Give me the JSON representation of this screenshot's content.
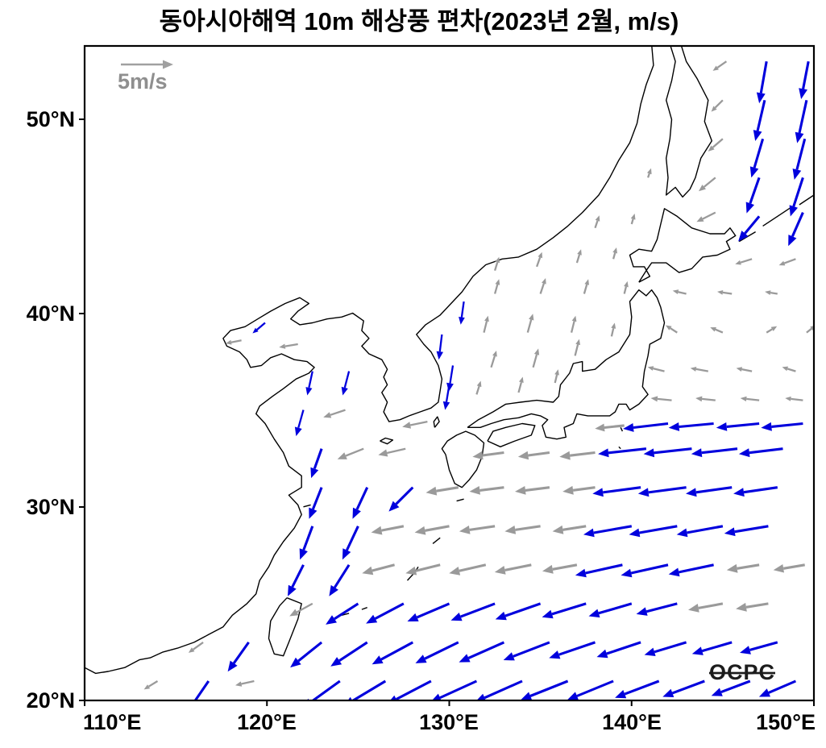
{
  "chart_data": {
    "type": "quiver-map",
    "title": "동아시아해역 10m 해상풍 편차(2023년 2월, m/s)",
    "watermark": "OCPC",
    "x_ticks": [
      110,
      120,
      130,
      140,
      150
    ],
    "y_ticks": [
      20,
      30,
      40,
      50
    ],
    "xlabel_ticks": [
      "110°E",
      "120°E",
      "130°E",
      "140°E",
      "150°E"
    ],
    "ylabel_ticks": [
      "20°N",
      "30°N",
      "40°N",
      "50°N"
    ],
    "x_range": [
      110,
      150
    ],
    "y_range": [
      20,
      53.8
    ],
    "units": "m/s",
    "reference_vector": {
      "label": "5m/s",
      "speed_ms": 5
    },
    "colors": {
      "significant": "#0000dd",
      "normal": "#9a9a9a",
      "coast": "#000000"
    },
    "legend_note": "blue = significant anomaly vectors, gray = other anomaly vectors",
    "vectors": [
      [
        114,
        21,
        -1.3,
        -0.8,
        "g"
      ],
      [
        116.8,
        21,
        -2.2,
        -3.2,
        "b"
      ],
      [
        119.3,
        21,
        -1.8,
        -0.4,
        "g"
      ],
      [
        124,
        21,
        -3.6,
        -2.6,
        "b"
      ],
      [
        126.5,
        21,
        -4,
        -2.4,
        "b"
      ],
      [
        129,
        21,
        -4.2,
        -2.2,
        "b"
      ],
      [
        131.5,
        21,
        -4.4,
        -2,
        "b"
      ],
      [
        134,
        21,
        -4.5,
        -2,
        "b"
      ],
      [
        136.5,
        21,
        -4.5,
        -1.8,
        "b"
      ],
      [
        139,
        21,
        -4.4,
        -1.8,
        "b"
      ],
      [
        141.5,
        21,
        -4.2,
        -1.6,
        "b"
      ],
      [
        144,
        21,
        -4,
        -1.5,
        "b"
      ],
      [
        146.5,
        21,
        -3.7,
        -1.4,
        "b"
      ],
      [
        149,
        21,
        -3.5,
        -1.5,
        "b"
      ],
      [
        116.5,
        23,
        -1.4,
        -1,
        "g"
      ],
      [
        119,
        23,
        -2,
        -2.8,
        "b"
      ],
      [
        123,
        23,
        -3,
        -2.4,
        "b"
      ],
      [
        125.5,
        23,
        -3.5,
        -2.3,
        "b"
      ],
      [
        128,
        23,
        -3.9,
        -2.1,
        "b"
      ],
      [
        130.5,
        23,
        -4.1,
        -2,
        "b"
      ],
      [
        133,
        23,
        -4.3,
        -1.9,
        "b"
      ],
      [
        135.5,
        23,
        -4.4,
        -1.7,
        "b"
      ],
      [
        138,
        23,
        -4.4,
        -1.5,
        "b"
      ],
      [
        140.5,
        23,
        -4.2,
        -1.4,
        "b"
      ],
      [
        143,
        23,
        -4,
        -1.2,
        "b"
      ],
      [
        145.5,
        23,
        -3.8,
        -1.1,
        "b"
      ],
      [
        148,
        23,
        -3.6,
        -1,
        "b"
      ],
      [
        122.5,
        25,
        -2.2,
        -1.2,
        "g"
      ],
      [
        125,
        25,
        -3.1,
        -2,
        "b"
      ],
      [
        127.5,
        25,
        -3.6,
        -1.9,
        "b"
      ],
      [
        130,
        25,
        -4,
        -1.7,
        "b"
      ],
      [
        132.5,
        25,
        -4.2,
        -1.6,
        "b"
      ],
      [
        135,
        25,
        -4.3,
        -1.5,
        "b"
      ],
      [
        137.5,
        25,
        -4.2,
        -1.3,
        "b"
      ],
      [
        140,
        25,
        -4.1,
        -1.2,
        "b"
      ],
      [
        142.5,
        25,
        -3.9,
        -1,
        "b"
      ],
      [
        145,
        25,
        -3.3,
        -0.6,
        "g"
      ],
      [
        147.5,
        25,
        -3.1,
        -0.5,
        "g"
      ],
      [
        122,
        27,
        -1.5,
        -3,
        "b"
      ],
      [
        124.5,
        27,
        -1.9,
        -3,
        "b"
      ],
      [
        127,
        27,
        -3.1,
        -0.8,
        "g"
      ],
      [
        129.5,
        27,
        -3.3,
        -0.8,
        "g"
      ],
      [
        132,
        27,
        -3.5,
        -0.8,
        "g"
      ],
      [
        134.5,
        27,
        -3.5,
        -0.7,
        "g"
      ],
      [
        137,
        27,
        -3.3,
        -0.6,
        "g"
      ],
      [
        139.5,
        27,
        -4.5,
        -1,
        "b"
      ],
      [
        142,
        27,
        -4.5,
        -1,
        "b"
      ],
      [
        144.5,
        27,
        -4.3,
        -0.9,
        "b"
      ],
      [
        147,
        27,
        -3.1,
        -0.5,
        "g"
      ],
      [
        149.5,
        27,
        -3,
        -0.5,
        "g"
      ],
      [
        122.5,
        29,
        -1.2,
        -3.2,
        "b"
      ],
      [
        125,
        29,
        -1.5,
        -3.2,
        "b"
      ],
      [
        127.5,
        29,
        -3.1,
        -0.6,
        "g"
      ],
      [
        130,
        29,
        -3.3,
        -0.6,
        "g"
      ],
      [
        132.5,
        29,
        -3.4,
        -0.5,
        "g"
      ],
      [
        135,
        29,
        -3.4,
        -0.5,
        "g"
      ],
      [
        137.5,
        29,
        -3.2,
        -0.5,
        "g"
      ],
      [
        140,
        29,
        -4.6,
        -0.8,
        "b"
      ],
      [
        142.5,
        29,
        -4.6,
        -0.8,
        "b"
      ],
      [
        145,
        29,
        -4.4,
        -0.8,
        "b"
      ],
      [
        147.5,
        29,
        -4.2,
        -0.7,
        "b"
      ],
      [
        123,
        31,
        -1.2,
        -3,
        "b"
      ],
      [
        125.5,
        31,
        -1.4,
        -3,
        "b"
      ],
      [
        128,
        31,
        -2.3,
        -2.3,
        "b"
      ],
      [
        130.5,
        31,
        -3.1,
        -0.5,
        "g"
      ],
      [
        133,
        31,
        -3.3,
        -0.4,
        "g"
      ],
      [
        135.5,
        31,
        -3.3,
        -0.4,
        "g"
      ],
      [
        138,
        31,
        -3.1,
        -0.4,
        "g"
      ],
      [
        140.5,
        31,
        -4.6,
        -0.6,
        "b"
      ],
      [
        143,
        31,
        -4.6,
        -0.6,
        "b"
      ],
      [
        145.5,
        31,
        -4.4,
        -0.6,
        "b"
      ],
      [
        148,
        31,
        -4.2,
        -0.6,
        "b"
      ],
      [
        123,
        33,
        -1,
        -2.8,
        "b"
      ],
      [
        125.3,
        33,
        -2.5,
        -1,
        "g"
      ],
      [
        127.6,
        33,
        -2.6,
        -0.6,
        "g"
      ],
      [
        133,
        32.8,
        -3,
        -0.4,
        "g"
      ],
      [
        135.5,
        32.8,
        -3,
        -0.4,
        "g"
      ],
      [
        138,
        32.8,
        -3.4,
        -0.4,
        "g"
      ],
      [
        140.8,
        33,
        -4.6,
        -0.5,
        "b"
      ],
      [
        143.3,
        33,
        -4.6,
        -0.5,
        "b"
      ],
      [
        145.8,
        33,
        -4.4,
        -0.5,
        "b"
      ],
      [
        148.3,
        33,
        -4.2,
        -0.5,
        "b"
      ],
      [
        139.6,
        34.2,
        -2.8,
        -0.3,
        "g"
      ],
      [
        142,
        34.3,
        -4.3,
        -0.5,
        "b"
      ],
      [
        144.5,
        34.3,
        -4.3,
        -0.4,
        "b"
      ],
      [
        147,
        34.3,
        -4.1,
        -0.4,
        "b"
      ],
      [
        149.4,
        34.3,
        -4,
        -0.4,
        "b"
      ],
      [
        122,
        35,
        -0.7,
        -2.5,
        "b"
      ],
      [
        124.3,
        35,
        -2.1,
        -0.7,
        "g"
      ],
      [
        128.8,
        34.4,
        -2.4,
        -0.5,
        "g"
      ],
      [
        142.2,
        35.5,
        -2,
        0.2,
        "g"
      ],
      [
        144.6,
        35.5,
        -1.9,
        0.2,
        "g"
      ],
      [
        147,
        35.5,
        -1.8,
        0.2,
        "g"
      ],
      [
        149.4,
        35.5,
        -1.7,
        0.2,
        "g"
      ],
      [
        130,
        36.3,
        -0.4,
        -2.4,
        "b"
      ],
      [
        131.5,
        35.8,
        0.4,
        1.3,
        "g"
      ],
      [
        133.8,
        35.9,
        0.4,
        1.5,
        "g"
      ],
      [
        135.8,
        36.4,
        0.3,
        1.3,
        "g"
      ],
      [
        122.5,
        37,
        -0.5,
        -2.3,
        "b"
      ],
      [
        124.5,
        37,
        -0.6,
        -2.3,
        "b"
      ],
      [
        130.2,
        37.3,
        -0.4,
        -2.5,
        "b"
      ],
      [
        132.3,
        37.2,
        0.5,
        1.6,
        "g"
      ],
      [
        134.6,
        37.2,
        0.5,
        1.8,
        "g"
      ],
      [
        136.9,
        37.8,
        0.4,
        1.6,
        "g"
      ],
      [
        141.8,
        37,
        -1.6,
        0.4,
        "g"
      ],
      [
        144.2,
        37,
        -1.7,
        0.3,
        "g"
      ],
      [
        146.6,
        37,
        -1.5,
        0.3,
        "g"
      ],
      [
        149,
        37,
        -1.3,
        0.4,
        "g"
      ],
      [
        119.9,
        39.5,
        -1.2,
        -1,
        "b"
      ],
      [
        121.7,
        38.4,
        -1.8,
        -0.3,
        "g"
      ],
      [
        118.6,
        38.6,
        -1.5,
        -0.3,
        "g"
      ],
      [
        129.6,
        38.9,
        -0.3,
        -2.4,
        "b"
      ],
      [
        131.9,
        39,
        0.4,
        1.6,
        "g"
      ],
      [
        134.3,
        39,
        0.5,
        1.8,
        "g"
      ],
      [
        136.7,
        39,
        0.4,
        1.6,
        "g"
      ],
      [
        138.9,
        38.8,
        0.3,
        1.3,
        "g"
      ],
      [
        142.5,
        39,
        -1.1,
        0.7,
        "g"
      ],
      [
        145,
        39,
        -1.2,
        0.5,
        "g"
      ],
      [
        147.4,
        39,
        1,
        0.6,
        "g"
      ],
      [
        149.6,
        39,
        0.9,
        0.7,
        "g"
      ],
      [
        130.8,
        40.6,
        -0.3,
        -2.2,
        "b"
      ],
      [
        132.5,
        41,
        0.4,
        1.4,
        "g"
      ],
      [
        135,
        41,
        0.5,
        1.5,
        "g"
      ],
      [
        137.4,
        41,
        0.4,
        1.4,
        "g"
      ],
      [
        139.6,
        41,
        0.3,
        1.2,
        "g"
      ],
      [
        143,
        41,
        -1.3,
        0.3,
        "g"
      ],
      [
        145.5,
        41,
        -1.4,
        0.2,
        "g"
      ],
      [
        148,
        41,
        -1.2,
        0.2,
        "g"
      ],
      [
        132.5,
        42.2,
        0.4,
        1.3,
        "g"
      ],
      [
        134.8,
        42.4,
        0.5,
        1.4,
        "g"
      ],
      [
        137,
        42.6,
        0.4,
        1.3,
        "g"
      ],
      [
        139,
        42.8,
        0.3,
        1.1,
        "g"
      ],
      [
        146.6,
        42.8,
        -1.6,
        -0.5,
        "g"
      ],
      [
        149,
        42.8,
        -1.6,
        -0.6,
        "g"
      ],
      [
        138,
        44.4,
        0.4,
        1.2,
        "g"
      ],
      [
        140,
        44.6,
        0.3,
        1,
        "g"
      ],
      [
        144.6,
        45.2,
        -1.8,
        -0.9,
        "g"
      ],
      [
        147,
        45,
        -2,
        -2.4,
        "b"
      ],
      [
        149.4,
        45.2,
        -1.4,
        -3.2,
        "b"
      ],
      [
        140.9,
        47,
        0.3,
        0.9,
        "g"
      ],
      [
        144.6,
        47,
        -1.6,
        -1.3,
        "g"
      ],
      [
        147,
        47,
        -1.2,
        -3.4,
        "b"
      ],
      [
        149.4,
        47,
        -1.2,
        -3.7,
        "b"
      ],
      [
        145,
        49,
        -1.4,
        -1.2,
        "g"
      ],
      [
        147.2,
        49,
        -1.1,
        -3.7,
        "b"
      ],
      [
        149.5,
        49,
        -1,
        -3.9,
        "b"
      ],
      [
        145,
        51,
        -1.1,
        -1.1,
        "g"
      ],
      [
        147.3,
        51,
        -0.9,
        -3.9,
        "b"
      ],
      [
        149.6,
        51,
        -0.9,
        -4.1,
        "b"
      ],
      [
        145.2,
        53,
        -1.3,
        -0.9,
        "g"
      ],
      [
        147.4,
        53,
        -0.7,
        -4,
        "b"
      ],
      [
        149.7,
        53,
        -0.7,
        -3.6,
        "b"
      ]
    ]
  }
}
